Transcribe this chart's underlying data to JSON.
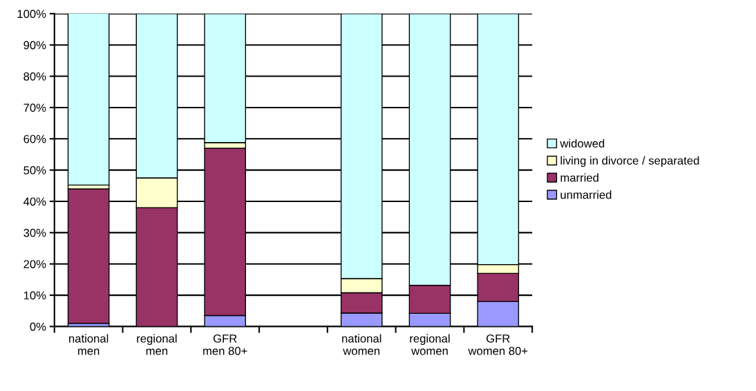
{
  "chart_data": {
    "type": "bar",
    "stacked": true,
    "categories": [
      "national\nmen",
      "regional\nmen",
      "GFR\nmen 80+",
      null,
      "national\nwomen",
      "regional\nwomen",
      "GFR\nwomen 80+"
    ],
    "series": [
      {
        "name": "unmarried",
        "color": "#9999ff",
        "values": [
          1,
          0,
          3.5,
          null,
          4.3,
          4.2,
          8
        ]
      },
      {
        "name": "married",
        "color": "#993366",
        "values": [
          43,
          38,
          53.5,
          null,
          6.5,
          9,
          9
        ]
      },
      {
        "name": "living in divorce / separated",
        "color": "#ffffcc",
        "values": [
          1.2,
          9.5,
          1.8,
          null,
          4.5,
          0,
          2.8
        ]
      },
      {
        "name": "widowed",
        "color": "#ccffff",
        "values": [
          55,
          52.5,
          41.2,
          null,
          84.7,
          86.8,
          80.2
        ]
      }
    ],
    "ylim": [
      0,
      100
    ],
    "yticks": [
      {
        "value": 0,
        "label": "0%"
      },
      {
        "value": 10,
        "label": "10%"
      },
      {
        "value": 20,
        "label": "20%"
      },
      {
        "value": 30,
        "label": "30%"
      },
      {
        "value": 40,
        "label": "40%"
      },
      {
        "value": 50,
        "label": "50%"
      },
      {
        "value": 60,
        "label": "60%"
      },
      {
        "value": 70,
        "label": "70%"
      },
      {
        "value": 80,
        "label": "80%"
      },
      {
        "value": 90,
        "label": "90%"
      },
      {
        "value": 100,
        "label": "100%"
      }
    ],
    "grid": "y",
    "legend": "right"
  }
}
